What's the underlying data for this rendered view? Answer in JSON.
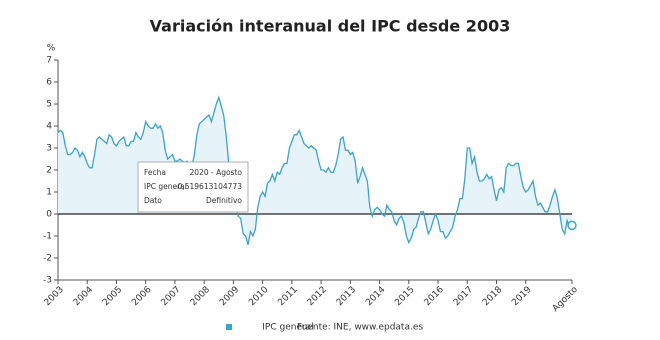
{
  "chart_data": {
    "type": "area",
    "title": "Variación interanual del IPC desde 2003",
    "y_unit": "%",
    "legend_label": "IPC general",
    "source": "Fuente: INE, www.epdata.es",
    "color": "#3ba3cc",
    "fill_color": "#e6f3f8",
    "ylim": [
      -3,
      7
    ],
    "yticks": [
      -3,
      -2,
      -1,
      0,
      1,
      2,
      3,
      4,
      5,
      6,
      7
    ],
    "grid": false,
    "categories": [
      "2003",
      null,
      null,
      null,
      null,
      null,
      null,
      null,
      null,
      null,
      null,
      null,
      "2004",
      null,
      null,
      null,
      null,
      null,
      null,
      null,
      null,
      null,
      null,
      null,
      "2005",
      null,
      null,
      null,
      null,
      null,
      null,
      null,
      null,
      null,
      null,
      null,
      "2006",
      null,
      null,
      null,
      null,
      null,
      null,
      null,
      null,
      null,
      null,
      null,
      "2007",
      null,
      null,
      null,
      null,
      null,
      null,
      null,
      null,
      null,
      null,
      null,
      "2008",
      null,
      null,
      null,
      null,
      null,
      null,
      null,
      null,
      null,
      null,
      null,
      "2009",
      null,
      null,
      null,
      null,
      null,
      null,
      null,
      null,
      null,
      null,
      null,
      "2010",
      null,
      null,
      null,
      null,
      null,
      null,
      null,
      null,
      null,
      null,
      null,
      "2011",
      null,
      null,
      null,
      null,
      null,
      null,
      null,
      null,
      null,
      null,
      null,
      "2012",
      null,
      null,
      null,
      null,
      null,
      null,
      null,
      null,
      null,
      null,
      null,
      "2013",
      null,
      null,
      null,
      null,
      null,
      null,
      null,
      null,
      null,
      null,
      null,
      "2014",
      null,
      null,
      null,
      null,
      null,
      null,
      null,
      null,
      null,
      null,
      null,
      "2015",
      null,
      null,
      null,
      null,
      null,
      null,
      null,
      null,
      null,
      null,
      null,
      "2016",
      null,
      null,
      null,
      null,
      null,
      null,
      null,
      null,
      null,
      null,
      null,
      "2017",
      null,
      null,
      null,
      null,
      null,
      null,
      null,
      null,
      null,
      null,
      null,
      "2018",
      null,
      null,
      null,
      null,
      null,
      null,
      null,
      null,
      null,
      null,
      null,
      "2019",
      null,
      null,
      null,
      null,
      null,
      null,
      null,
      null,
      null,
      null,
      null,
      null,
      null,
      null,
      null,
      null,
      null,
      null,
      "Agosto"
    ],
    "values": [
      3.7,
      3.8,
      3.7,
      3.1,
      2.7,
      2.7,
      2.8,
      3.0,
      2.9,
      2.6,
      2.8,
      2.6,
      2.3,
      2.1,
      2.1,
      2.7,
      3.4,
      3.5,
      3.4,
      3.3,
      3.2,
      3.6,
      3.5,
      3.2,
      3.1,
      3.3,
      3.4,
      3.5,
      3.1,
      3.1,
      3.3,
      3.3,
      3.7,
      3.5,
      3.4,
      3.7,
      4.2,
      4.0,
      3.9,
      3.9,
      4.1,
      3.9,
      4.0,
      3.7,
      2.9,
      2.5,
      2.6,
      2.7,
      2.4,
      2.4,
      2.5,
      2.4,
      2.3,
      2.4,
      2.2,
      2.2,
      2.7,
      3.6,
      4.1,
      4.2,
      4.3,
      4.4,
      4.5,
      4.2,
      4.6,
      5.0,
      5.3,
      4.9,
      4.5,
      3.6,
      2.4,
      1.4,
      0.8,
      0.7,
      -0.1,
      -0.2,
      -0.9,
      -1.0,
      -1.4,
      -0.8,
      -1.0,
      -0.7,
      0.3,
      0.8,
      1.0,
      0.8,
      1.4,
      1.5,
      1.8,
      1.5,
      1.9,
      1.8,
      2.1,
      2.3,
      2.3,
      3.0,
      3.3,
      3.6,
      3.6,
      3.8,
      3.5,
      3.2,
      3.1,
      3.0,
      3.1,
      3.0,
      2.9,
      2.4,
      2.0,
      2.0,
      1.9,
      2.1,
      1.9,
      1.9,
      2.2,
      2.7,
      3.4,
      3.5,
      2.9,
      2.9,
      2.7,
      2.8,
      2.4,
      1.4,
      1.7,
      2.1,
      1.8,
      1.5,
      0.3,
      -0.1,
      0.2,
      0.3,
      0.2,
      0.0,
      -0.1,
      0.4,
      0.2,
      0.1,
      -0.3,
      -0.5,
      -0.2,
      -0.1,
      -0.4,
      -1.0,
      -1.3,
      -1.1,
      -0.7,
      -0.6,
      -0.2,
      0.1,
      0.1,
      -0.4,
      -0.9,
      -0.7,
      -0.3,
      0.0,
      -0.3,
      -0.8,
      -0.8,
      -1.1,
      -1.0,
      -0.8,
      -0.6,
      -0.1,
      0.2,
      0.7,
      0.7,
      1.6,
      3.0,
      3.0,
      2.3,
      2.6,
      1.9,
      1.5,
      1.5,
      1.6,
      1.8,
      1.6,
      1.7,
      1.1,
      0.6,
      1.1,
      1.2,
      1.0,
      2.1,
      2.3,
      2.2,
      2.2,
      2.3,
      2.3,
      1.7,
      1.2,
      1.0,
      1.1,
      1.3,
      1.5,
      0.8,
      0.4,
      0.5,
      0.3,
      0.1,
      0.1,
      0.4,
      0.8,
      1.1,
      0.7,
      0.0,
      -0.7,
      -0.9,
      -0.3,
      -0.6,
      -0.519613104773
    ],
    "tooltip": {
      "rows": [
        [
          "Fecha",
          "2020 - Agosto"
        ],
        [
          "IPC general",
          "-0,519613104773"
        ],
        [
          "Dato",
          "Definitivo"
        ]
      ]
    }
  }
}
